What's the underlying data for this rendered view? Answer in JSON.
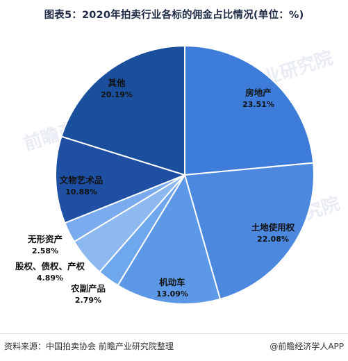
{
  "title": "图表5：2020年拍卖行业各标的佣金占比情况(单位：%)",
  "footer": {
    "source": "资料来源：中国拍卖协会 前瞻产业研究院整理",
    "brand": "@前瞻经济学人APP"
  },
  "watermarks": [
    "前瞻产业研究院",
    "前瞻产业研究院",
    "前瞻产业研究院"
  ],
  "colors": {
    "dark_blue": "#1a4f9c",
    "medium_blue": "#3d7dd9",
    "light_blue": "#5f9eea",
    "pale_blue": "#8db7f0",
    "label_text": "#111111"
  },
  "chart_data": {
    "type": "pie",
    "title": "图表5：2020年拍卖行业各标的佣金占比情况(单位：%)",
    "unit": "%",
    "slices": [
      {
        "label": "房地产",
        "value": 23.51,
        "value_label": "23.51%",
        "color": "#3d7dd9"
      },
      {
        "label": "土地使用权",
        "value": 22.08,
        "value_label": "22.08%",
        "color": "#4b88de"
      },
      {
        "label": "机动车",
        "value": 13.09,
        "value_label": "13.09%",
        "color": "#5d98e6"
      },
      {
        "label": "农副产品",
        "value": 2.79,
        "value_label": "2.79%",
        "color": "#6fa7ec"
      },
      {
        "label": "股权、债权、产权",
        "value": 4.89,
        "value_label": "4.89%",
        "color": "#8db9f0"
      },
      {
        "label": "无形资产",
        "value": 2.58,
        "value_label": "2.58%",
        "color": "#79abee"
      },
      {
        "label": "文物艺术品",
        "value": 10.88,
        "value_label": "10.88%",
        "color": "#1e4fa3"
      },
      {
        "label": "其他",
        "value": 20.19,
        "value_label": "20.19%",
        "color": "#1a4f9c"
      }
    ],
    "start_angle_deg": 0,
    "direction": "clockwise",
    "legend": "none"
  }
}
